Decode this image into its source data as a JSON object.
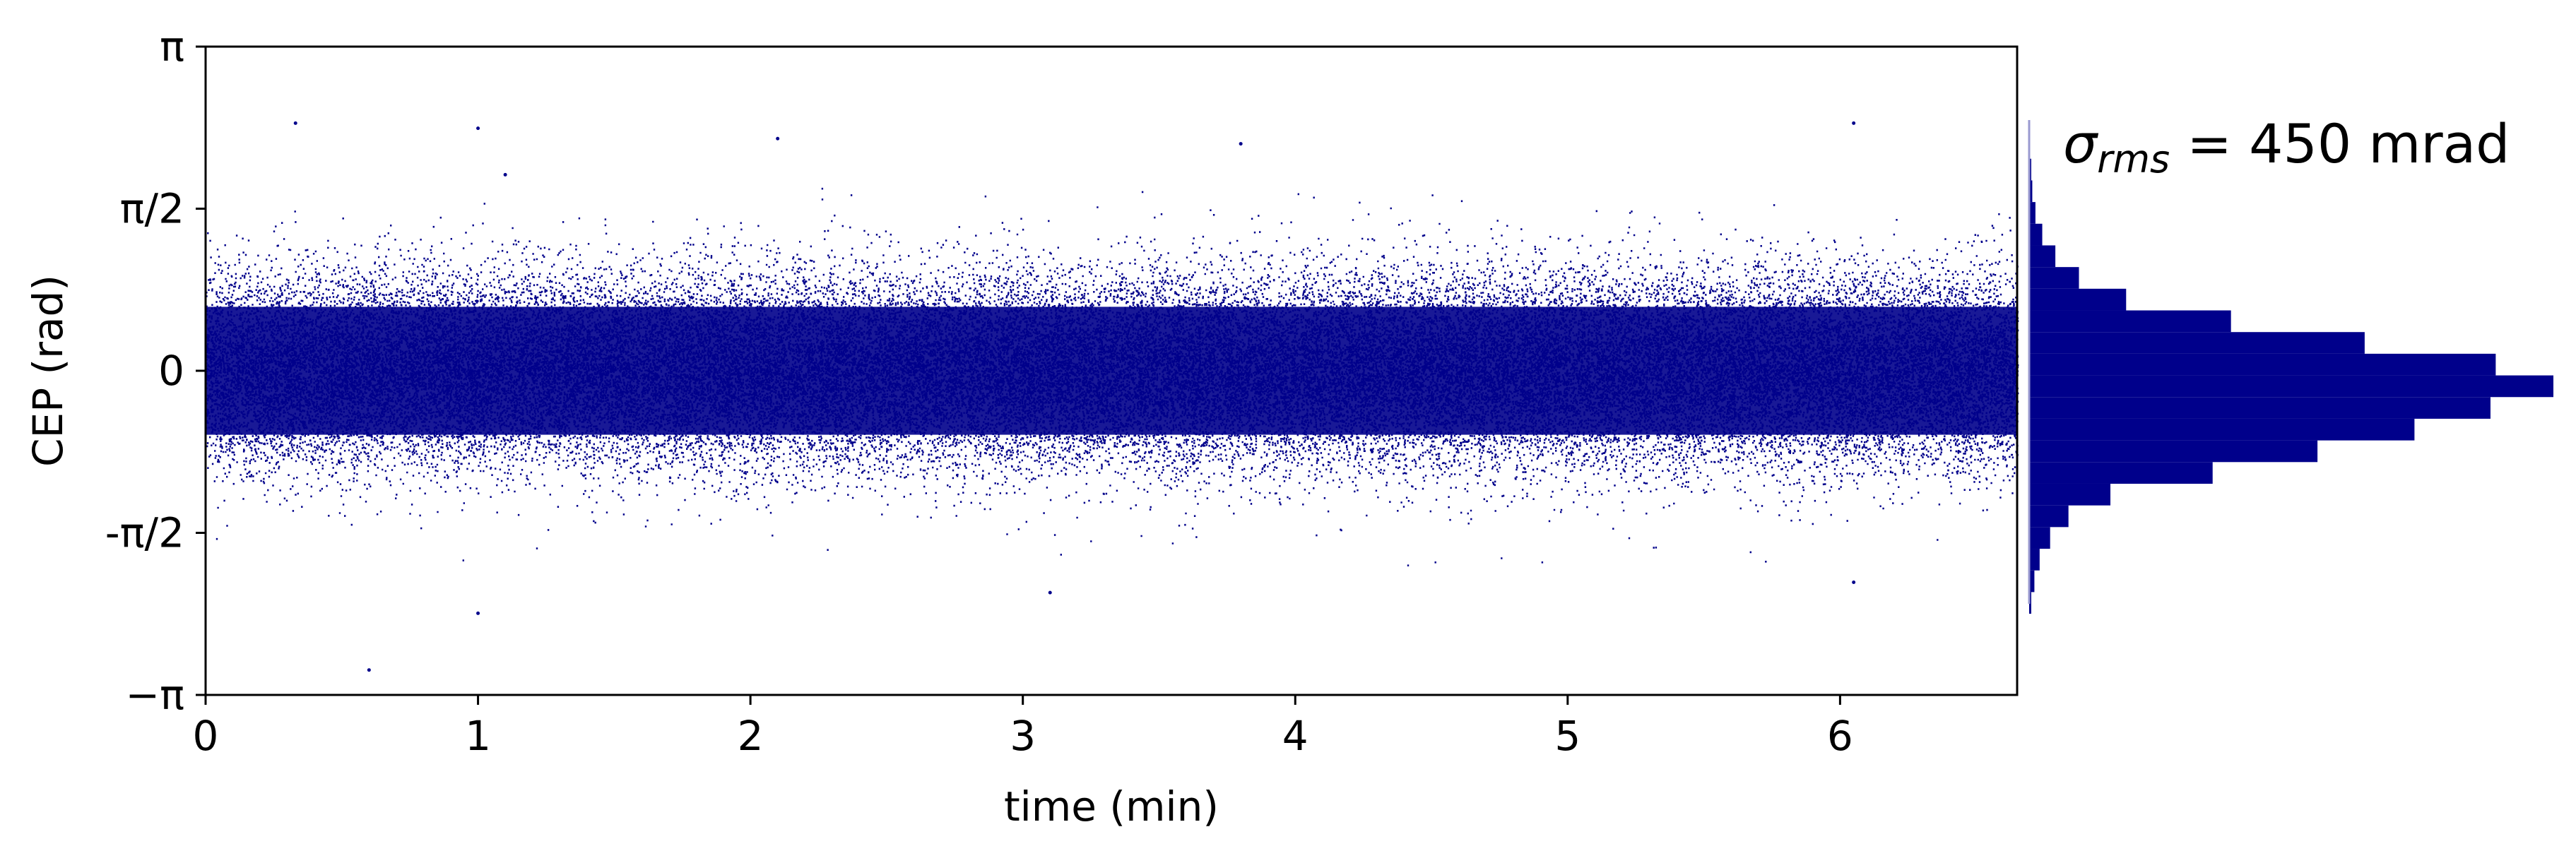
{
  "chart_data": [
    {
      "type": "scatter",
      "title": "",
      "xlabel": "time (min)",
      "ylabel": "CEP (rad)",
      "xlim": [
        0,
        6.65
      ],
      "ylim": [
        -3.14159,
        3.14159
      ],
      "x_ticks": [
        {
          "value": 0,
          "label": "0"
        },
        {
          "value": 1,
          "label": "1"
        },
        {
          "value": 2,
          "label": "2"
        },
        {
          "value": 3,
          "label": "3"
        },
        {
          "value": 4,
          "label": "4"
        },
        {
          "value": 5,
          "label": "5"
        },
        {
          "value": 6,
          "label": "6"
        }
      ],
      "y_ticks": [
        {
          "value": -3.14159,
          "label": "−π"
        },
        {
          "value": -1.5708,
          "label": "-π/2"
        },
        {
          "value": 0,
          "label": "0"
        },
        {
          "value": 1.5708,
          "label": "π/2"
        },
        {
          "value": 3.14159,
          "label": "π"
        }
      ],
      "grid": false,
      "series": [
        {
          "color": "#00008b",
          "distribution": "gaussian",
          "mean": 0,
          "std": 0.45,
          "points": 500000,
          "outliers": [
            {
              "x": 0.33,
              "y": 2.4
            },
            {
              "x": 0.6,
              "y": -2.9
            },
            {
              "x": 1.0,
              "y": -2.35
            },
            {
              "x": 1.0,
              "y": 2.35
            },
            {
              "x": 1.1,
              "y": 1.9
            },
            {
              "x": 2.1,
              "y": 2.25
            },
            {
              "x": 3.1,
              "y": -2.15
            },
            {
              "x": 3.8,
              "y": 2.2
            },
            {
              "x": 6.05,
              "y": 2.4
            },
            {
              "x": 6.05,
              "y": -2.05
            }
          ]
        }
      ]
    },
    {
      "type": "histogram",
      "orientation": "horizontal",
      "color": "#00008b",
      "ylim": [
        -3.14159,
        3.14159
      ],
      "bin_width": 0.21,
      "bins": [
        {
          "y": -2.25,
          "count": 0.004
        },
        {
          "y": -2.04,
          "count": 0.01
        },
        {
          "y": -1.83,
          "count": 0.02
        },
        {
          "y": -1.62,
          "count": 0.04
        },
        {
          "y": -1.41,
          "count": 0.075
        },
        {
          "y": -1.2,
          "count": 0.155
        },
        {
          "y": -0.99,
          "count": 0.35
        },
        {
          "y": -0.78,
          "count": 0.55
        },
        {
          "y": -0.57,
          "count": 0.735
        },
        {
          "y": -0.36,
          "count": 0.88
        },
        {
          "y": -0.15,
          "count": 1.0
        },
        {
          "y": 0.06,
          "count": 0.89
        },
        {
          "y": 0.27,
          "count": 0.64
        },
        {
          "y": 0.48,
          "count": 0.385
        },
        {
          "y": 0.69,
          "count": 0.185
        },
        {
          "y": 0.9,
          "count": 0.095
        },
        {
          "y": 1.11,
          "count": 0.05
        },
        {
          "y": 1.32,
          "count": 0.025
        },
        {
          "y": 1.53,
          "count": 0.012
        },
        {
          "y": 1.74,
          "count": 0.006
        },
        {
          "y": 1.95,
          "count": 0.004
        }
      ]
    }
  ],
  "annotation": {
    "sigma_symbol": "σ",
    "sigma_subscript": "rms",
    "equals": " = ",
    "value": "450 mrad"
  }
}
